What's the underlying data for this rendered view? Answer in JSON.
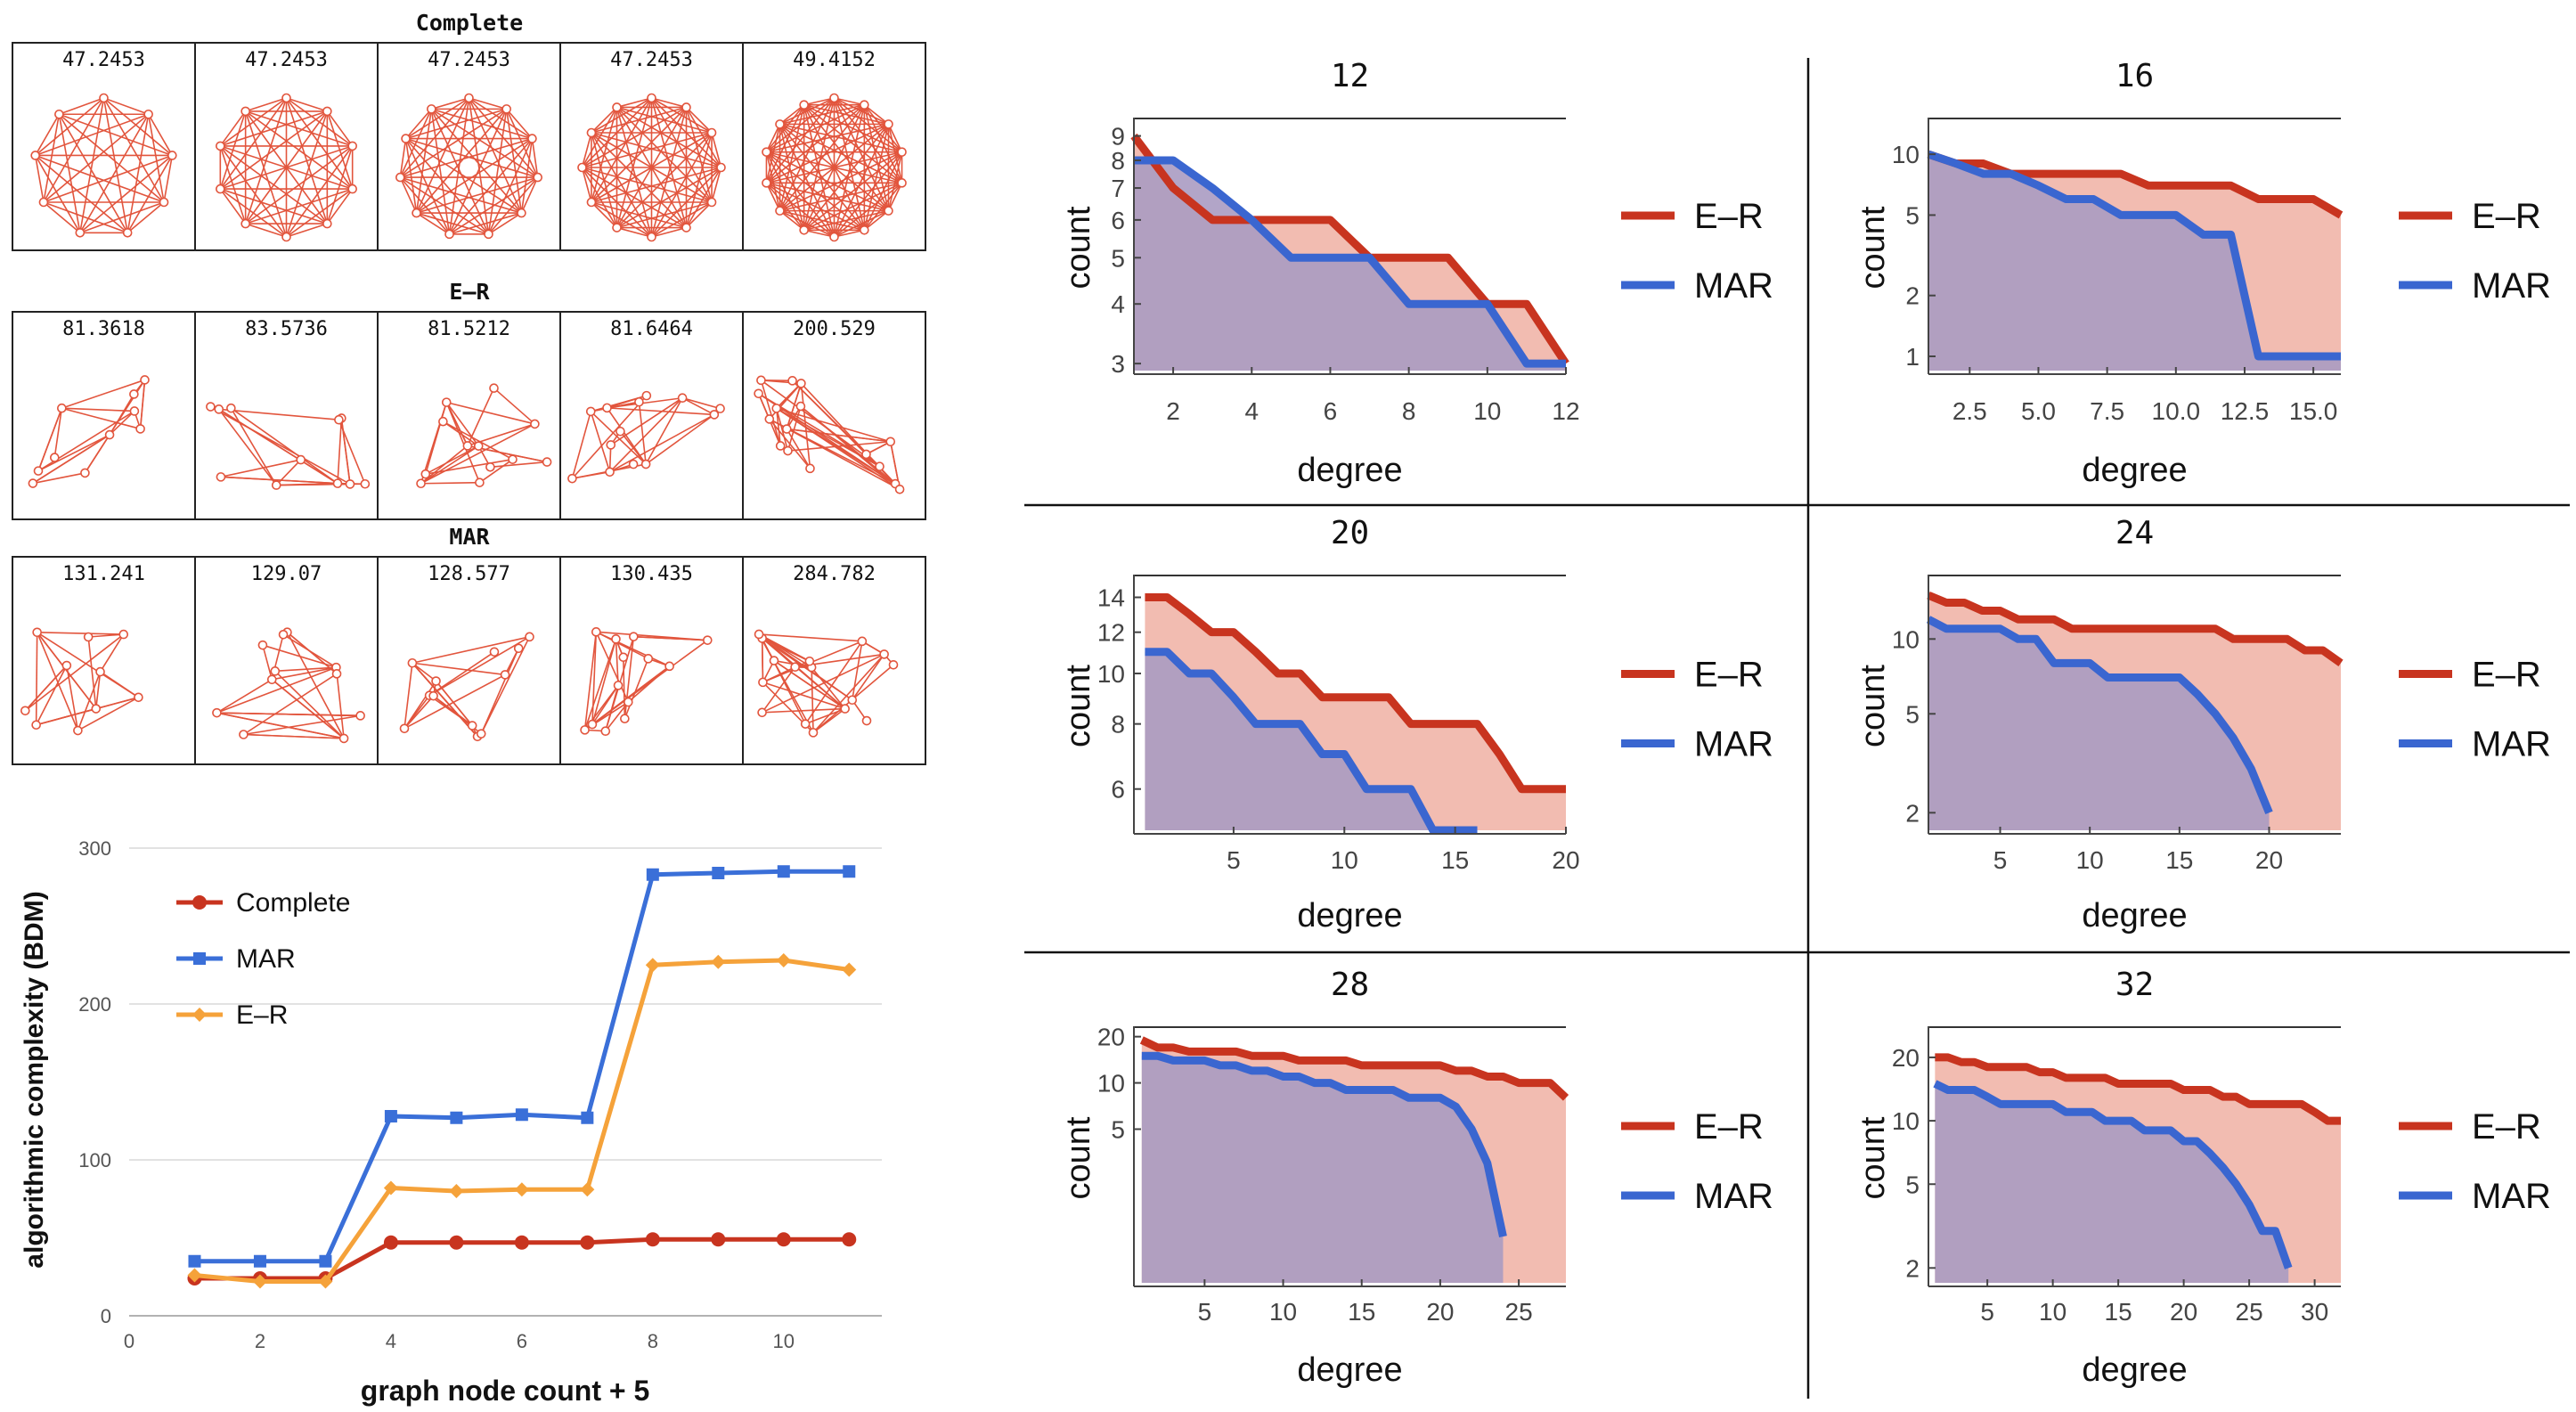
{
  "colors": {
    "er": "#c8341f",
    "mar": "#3a66d0",
    "er_fill": "#f1b8ad",
    "mar_fill": "#aa9bc2",
    "mar_fill_light": "#c4ccf2",
    "complete_line": "#c8341f",
    "mar_line": "#3a6fd8",
    "er_line": "#f5a23a",
    "graph_edge": "#e2553d",
    "frame": "#222222"
  },
  "graph_panels": [
    {
      "title": "Complete",
      "values": [
        "47.2453",
        "47.2453",
        "47.2453",
        "47.2453",
        "49.4152"
      ]
    },
    {
      "title": "E–R",
      "values": [
        "81.3618",
        "83.5736",
        "81.5212",
        "81.6464",
        "200.529"
      ]
    },
    {
      "title": "MAR",
      "values": [
        "131.241",
        "129.07",
        "128.577",
        "130.435",
        "284.782"
      ]
    }
  ],
  "chart_data": [
    {
      "type": "line",
      "title": "",
      "xlabel": "graph node count + 5",
      "ylabel": "algorithmic complexity (BDM)",
      "x": [
        1,
        2,
        3,
        4,
        5,
        6,
        7,
        8,
        9,
        10,
        11
      ],
      "xlim": [
        0,
        11.5
      ],
      "ylim": [
        0,
        300
      ],
      "xticks": [
        0,
        2,
        4,
        6,
        8,
        10
      ],
      "yticks": [
        0,
        100,
        200,
        300
      ],
      "legend_position": "top-left",
      "series": [
        {
          "name": "Complete",
          "values": [
            24,
            24,
            24,
            47,
            47,
            47,
            47,
            49,
            49,
            49,
            49
          ]
        },
        {
          "name": "MAR",
          "values": [
            35,
            35,
            35,
            128,
            127,
            129,
            127,
            283,
            284,
            285,
            285
          ]
        },
        {
          "name": "E–R",
          "values": [
            26,
            22,
            22,
            82,
            80,
            81,
            81,
            225,
            227,
            228,
            222
          ]
        }
      ]
    },
    {
      "type": "area",
      "title": "12",
      "xlabel": "degree",
      "ylabel": "count",
      "xlim": [
        1,
        12
      ],
      "ylim": [
        2.9,
        9.5
      ],
      "xticks": [
        "2",
        "4",
        "6",
        "8",
        "10",
        "12"
      ],
      "yticks": [
        "3",
        "4",
        "5",
        "6",
        "7",
        "8",
        "9"
      ],
      "legend": [
        "E–R",
        "MAR"
      ],
      "series": [
        {
          "name": "E–R",
          "x": [
            1,
            2,
            3,
            4,
            5,
            6,
            7,
            8,
            9,
            10,
            11,
            12
          ],
          "values": [
            9,
            7,
            6,
            6,
            6,
            6,
            5,
            5,
            5,
            4,
            4,
            3
          ]
        },
        {
          "name": "MAR",
          "x": [
            1,
            2,
            3,
            4,
            5,
            6,
            7,
            8,
            9,
            10,
            11,
            12
          ],
          "values": [
            8,
            8,
            7,
            6,
            5,
            5,
            5,
            4,
            4,
            4,
            3,
            3
          ]
        }
      ]
    },
    {
      "type": "area",
      "title": "16",
      "xlabel": "degree",
      "ylabel": "count",
      "xlim": [
        1,
        16
      ],
      "ylim": [
        0.85,
        14
      ],
      "xticks": [
        "2.5",
        "5.0",
        "7.5",
        "10.0",
        "12.5",
        "15.0"
      ],
      "yticks": [
        "1",
        "2",
        "5",
        "10"
      ],
      "legend": [
        "E–R",
        "MAR"
      ],
      "series": [
        {
          "name": "E–R",
          "x": [
            1,
            2,
            3,
            4,
            5,
            6,
            7,
            8,
            9,
            10,
            11,
            12,
            13,
            14,
            15,
            16
          ],
          "values": [
            10,
            9,
            9,
            8,
            8,
            8,
            8,
            8,
            7,
            7,
            7,
            7,
            6,
            6,
            6,
            5
          ]
        },
        {
          "name": "MAR",
          "x": [
            1,
            2,
            3,
            4,
            5,
            6,
            7,
            8,
            9,
            10,
            11,
            12,
            13,
            14,
            15,
            16
          ],
          "values": [
            10,
            9,
            8,
            8,
            7,
            6,
            6,
            5,
            5,
            5,
            4,
            4,
            1,
            1,
            1,
            1
          ]
        }
      ]
    },
    {
      "type": "area",
      "title": "20",
      "xlabel": "degree",
      "ylabel": "count",
      "xlim": [
        0.5,
        20
      ],
      "ylim": [
        5,
        15
      ],
      "xticks": [
        "5",
        "10",
        "15",
        "20"
      ],
      "yticks": [
        "6",
        "8",
        "10",
        "12",
        "14"
      ],
      "legend": [
        "E–R",
        "MAR"
      ],
      "series": [
        {
          "name": "E–R",
          "x": [
            1,
            2,
            3,
            4,
            5,
            6,
            7,
            8,
            9,
            10,
            11,
            12,
            13,
            14,
            15,
            16,
            17,
            18,
            19,
            20
          ],
          "values": [
            14,
            14,
            13,
            12,
            12,
            11,
            10,
            10,
            9,
            9,
            9,
            9,
            8,
            8,
            8,
            8,
            7,
            6,
            6,
            6
          ]
        },
        {
          "name": "MAR",
          "x": [
            1,
            2,
            3,
            4,
            5,
            6,
            7,
            8,
            9,
            10,
            11,
            12,
            13,
            14,
            15,
            16
          ],
          "values": [
            11,
            11,
            10,
            10,
            9,
            8,
            8,
            8,
            7,
            7,
            6,
            6,
            6,
            5,
            5,
            5
          ]
        }
      ]
    },
    {
      "type": "area",
      "title": "24",
      "xlabel": "degree",
      "ylabel": "count",
      "xlim": [
        1,
        24
      ],
      "ylim": [
        1.7,
        17
      ],
      "xticks": [
        "5",
        "10",
        "15",
        "20"
      ],
      "yticks": [
        "2",
        "5",
        "10"
      ],
      "legend": [
        "E–R",
        "MAR"
      ],
      "series": [
        {
          "name": "E–R",
          "x": [
            1,
            2,
            3,
            4,
            5,
            6,
            7,
            8,
            9,
            10,
            11,
            12,
            13,
            14,
            15,
            16,
            17,
            18,
            19,
            20,
            21,
            22,
            23,
            24
          ],
          "values": [
            15,
            14,
            14,
            13,
            13,
            12,
            12,
            12,
            11,
            11,
            11,
            11,
            11,
            11,
            11,
            11,
            11,
            10,
            10,
            10,
            10,
            9,
            9,
            8
          ]
        },
        {
          "name": "MAR",
          "x": [
            1,
            2,
            3,
            4,
            5,
            6,
            7,
            8,
            9,
            10,
            11,
            12,
            13,
            14,
            15,
            16,
            17,
            18,
            19,
            20
          ],
          "values": [
            12,
            11,
            11,
            11,
            11,
            10,
            10,
            8,
            8,
            8,
            7,
            7,
            7,
            7,
            7,
            6,
            5,
            4,
            3,
            2
          ]
        }
      ]
    },
    {
      "type": "area",
      "title": "28",
      "xlabel": "degree",
      "ylabel": "count",
      "xlim": [
        0.5,
        28
      ],
      "ylim": [
        0.5,
        21
      ],
      "xticks": [
        "5",
        "10",
        "15",
        "20",
        "25"
      ],
      "yticks": [
        "5",
        "10",
        "20"
      ],
      "legend": [
        "E–R",
        "MAR"
      ],
      "series": [
        {
          "name": "E–R",
          "x": [
            1,
            2,
            3,
            4,
            5,
            6,
            7,
            8,
            9,
            10,
            11,
            12,
            13,
            14,
            15,
            16,
            17,
            18,
            19,
            20,
            21,
            22,
            23,
            24,
            25,
            26,
            27,
            28
          ],
          "values": [
            19,
            17,
            17,
            16,
            16,
            16,
            16,
            15,
            15,
            15,
            14,
            14,
            14,
            14,
            13,
            13,
            13,
            13,
            13,
            13,
            12,
            12,
            11,
            11,
            10,
            10,
            10,
            8
          ]
        },
        {
          "name": "MAR",
          "x": [
            1,
            2,
            3,
            4,
            5,
            6,
            7,
            8,
            9,
            10,
            11,
            12,
            13,
            14,
            15,
            16,
            17,
            18,
            19,
            20,
            21,
            22,
            23,
            24
          ],
          "values": [
            15,
            15,
            14,
            14,
            14,
            13,
            13,
            12,
            12,
            11,
            11,
            10,
            10,
            9,
            9,
            9,
            9,
            8,
            8,
            8,
            7,
            5,
            3,
            1
          ]
        }
      ]
    },
    {
      "type": "area",
      "title": "32",
      "xlabel": "degree",
      "ylabel": "count",
      "xlim": [
        0.5,
        32
      ],
      "ylim": [
        1.7,
        26
      ],
      "xticks": [
        "5",
        "10",
        "15",
        "20",
        "25",
        "30"
      ],
      "yticks": [
        "2",
        "5",
        "10",
        "20"
      ],
      "legend": [
        "E–R",
        "MAR"
      ],
      "series": [
        {
          "name": "E–R",
          "x": [
            1,
            2,
            3,
            4,
            5,
            6,
            7,
            8,
            9,
            10,
            11,
            12,
            13,
            14,
            15,
            16,
            17,
            18,
            19,
            20,
            21,
            22,
            23,
            24,
            25,
            26,
            27,
            28,
            29,
            30,
            31,
            32
          ],
          "values": [
            20,
            20,
            19,
            19,
            18,
            18,
            18,
            18,
            17,
            17,
            16,
            16,
            16,
            16,
            15,
            15,
            15,
            15,
            15,
            14,
            14,
            14,
            13,
            13,
            12,
            12,
            12,
            12,
            12,
            11,
            10,
            10
          ]
        },
        {
          "name": "MAR",
          "x": [
            1,
            2,
            3,
            4,
            5,
            6,
            7,
            8,
            9,
            10,
            11,
            12,
            13,
            14,
            15,
            16,
            17,
            18,
            19,
            20,
            21,
            22,
            23,
            24,
            25,
            26,
            27,
            28
          ],
          "values": [
            15,
            14,
            14,
            14,
            13,
            12,
            12,
            12,
            12,
            12,
            11,
            11,
            11,
            10,
            10,
            10,
            9,
            9,
            9,
            8,
            8,
            7,
            6,
            5,
            4,
            3,
            3,
            2
          ]
        }
      ]
    }
  ]
}
